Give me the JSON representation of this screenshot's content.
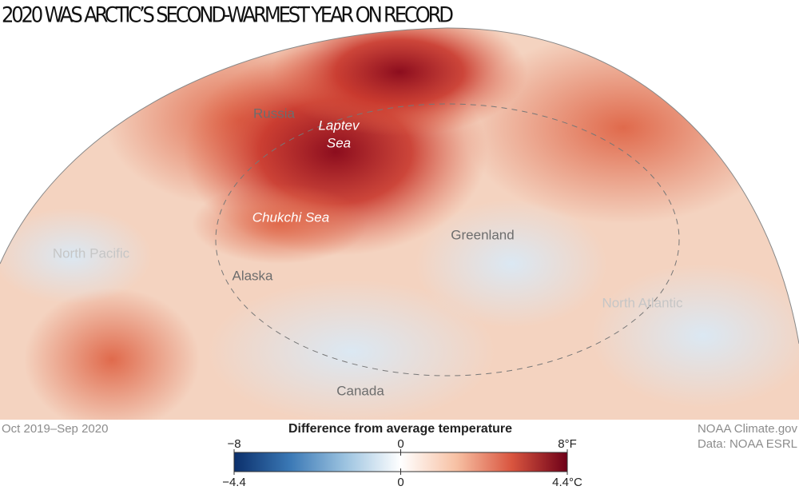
{
  "title": "2020 WAS ARCTIC’S SECOND-WARMEST YEAR ON RECORD",
  "places": {
    "russia": "Russia",
    "laptev": [
      "Laptev",
      "Sea"
    ],
    "chukchi": "Chukchi Sea",
    "greenland": "Greenland",
    "north_pacific": "North Pacific",
    "alaska": "Alaska",
    "north_atlantic": "North Atlantic",
    "canada": "Canada"
  },
  "period": "Oct 2019–Sep 2020",
  "credits": [
    "NOAA Climate.gov",
    "Data: NOAA ESRL"
  ],
  "legend": {
    "title": "Difference from average temperature",
    "fahrenheit_ticks": [
      {
        "value": -8,
        "label": "−8"
      },
      0,
      {
        "value": 8,
        "label": "8°F"
      }
    ],
    "celsius_ticks": [
      {
        "value": -4.4,
        "label": "−4.4"
      },
      0,
      {
        "value": 4.4,
        "label": "4.4°C"
      }
    ],
    "colors": [
      "#0b2f6b",
      "#3a78b5",
      "#9cc3e0",
      "#ffffff",
      "#f7c1a4",
      "#d9553f",
      "#6e0018"
    ]
  }
}
